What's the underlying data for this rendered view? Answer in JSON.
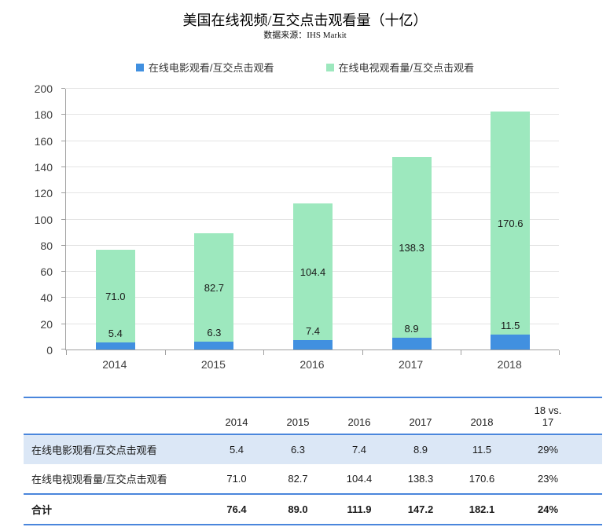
{
  "header": {
    "title": "美国在线视频/互交点击观看量（十亿）",
    "source": "数据来源：IHS Markit"
  },
  "legend": [
    {
      "label": "在线电影观看/互交点击观看",
      "color": "#4190E0"
    },
    {
      "label": "在线电视观看量/互交点击观看",
      "color": "#9DE8BE"
    }
  ],
  "chart_data": {
    "type": "bar",
    "stacked": true,
    "title": "美国在线视频/互交点击观看量（十亿）",
    "subtitle": "数据来源：IHS Markit",
    "categories": [
      "2014",
      "2015",
      "2016",
      "2017",
      "2018"
    ],
    "series": [
      {
        "name": "在线电影观看/互交点击观看",
        "color": "#4190E0",
        "values": [
          5.4,
          6.3,
          7.4,
          8.9,
          11.5
        ]
      },
      {
        "name": "在线电视观看量/互交点击观看",
        "color": "#9DE8BE",
        "values": [
          71.0,
          82.7,
          104.4,
          138.3,
          170.6
        ]
      }
    ],
    "totals": [
      76.4,
      89.0,
      111.9,
      147.2,
      182.1
    ],
    "xlabel": "",
    "ylabel": "",
    "ylim": [
      0,
      200
    ],
    "ytick_step": 20,
    "grid": true,
    "legend_position": "top",
    "data_labels": true
  },
  "table": {
    "header": [
      "",
      "2014",
      "2015",
      "2016",
      "2017",
      "2018",
      "18 vs.\n17"
    ],
    "rows": [
      {
        "label": "在线电影观看/互交点击观看",
        "values": [
          "5.4",
          "6.3",
          "7.4",
          "8.9",
          "11.5",
          "29%"
        ],
        "highlight": true,
        "total": false
      },
      {
        "label": "在线电视观看量/互交点击观看",
        "values": [
          "71.0",
          "82.7",
          "104.4",
          "138.3",
          "170.6",
          "23%"
        ],
        "highlight": false,
        "total": false
      },
      {
        "label": "合计",
        "values": [
          "76.4",
          "89.0",
          "111.9",
          "147.2",
          "182.1",
          "24%"
        ],
        "highlight": false,
        "total": true
      }
    ]
  },
  "colors": {
    "movie_bar": "#4190E0",
    "tv_bar": "#9DE8BE",
    "table_line": "#4a86dc",
    "highlight_row_bg": "#dbe7f6",
    "gridline": "#e4e4e4",
    "axis": "#a0a0a0"
  }
}
